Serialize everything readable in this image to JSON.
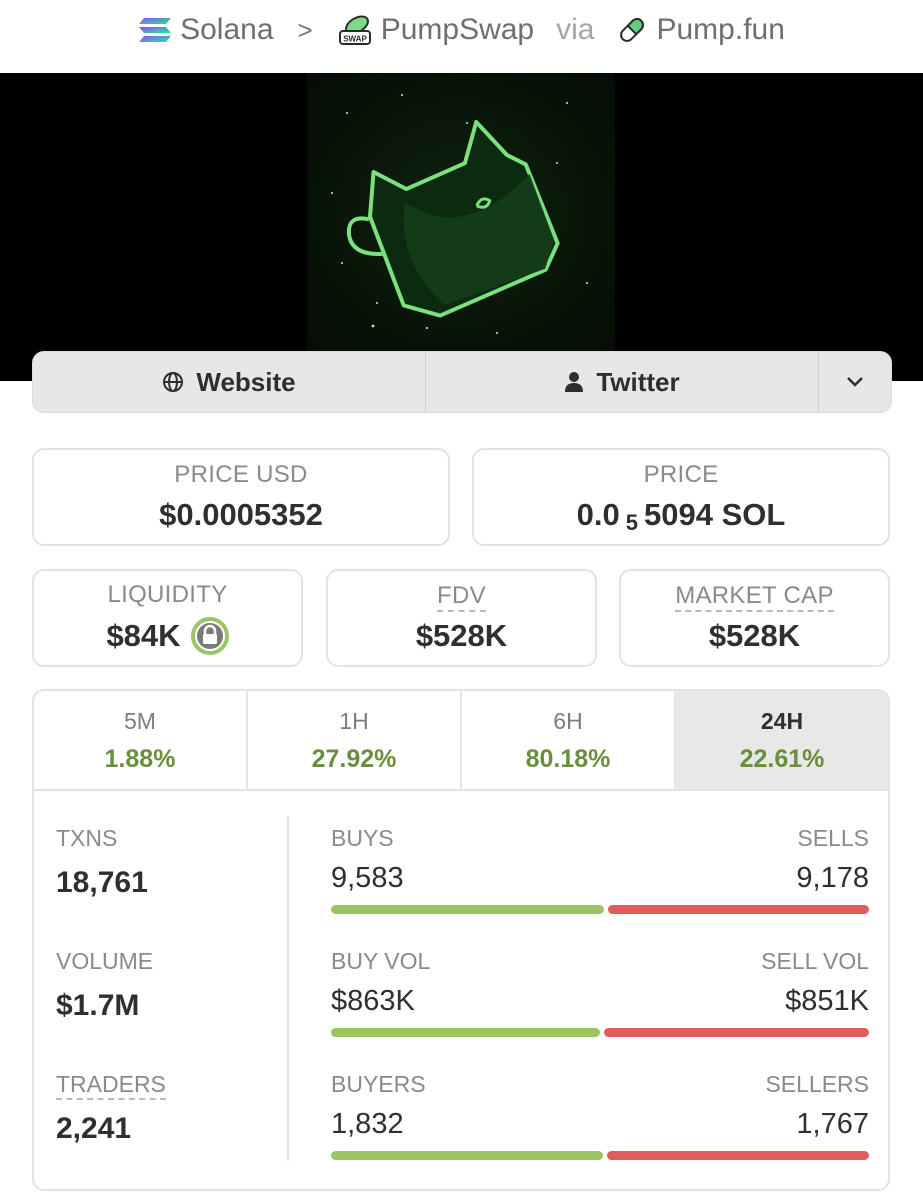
{
  "breadcrumb": {
    "chain": "Solana",
    "separator": ">",
    "dex": "PumpSwap",
    "dex_badge": "SWAP",
    "via": "via",
    "launchpad": "Pump.fun"
  },
  "links": {
    "website": "Website",
    "twitter": "Twitter"
  },
  "price_usd": {
    "label": "PRICE USD",
    "value": "$0.0005352"
  },
  "price_native": {
    "label": "PRICE",
    "prefix": "0.0",
    "subscript_zeros": "5",
    "digits": "5094 SOL"
  },
  "liquidity": {
    "label": "LIQUIDITY",
    "value": "$84K"
  },
  "fdv": {
    "label": "FDV",
    "value": "$528K"
  },
  "market_cap": {
    "label": "MARKET CAP",
    "value": "$528K"
  },
  "periods": [
    {
      "label": "5M",
      "change": "1.88%"
    },
    {
      "label": "1H",
      "change": "27.92%"
    },
    {
      "label": "6H",
      "change": "80.18%"
    },
    {
      "label": "24H",
      "change": "22.61%",
      "active": true
    }
  ],
  "stats": {
    "txns": {
      "label": "TXNS",
      "value": "18,761"
    },
    "volume": {
      "label": "VOLUME",
      "value": "$1.7M"
    },
    "traders": {
      "label": "TRADERS",
      "value": "2,241"
    },
    "buys": {
      "label": "BUYS",
      "value": "9,583"
    },
    "sells": {
      "label": "SELLS",
      "value": "9,178"
    },
    "buy_vol": {
      "label": "BUY VOL",
      "value": "$863K"
    },
    "sell_vol": {
      "label": "SELL VOL",
      "value": "$851K"
    },
    "buyers": {
      "label": "BUYERS",
      "value": "1,832"
    },
    "sellers": {
      "label": "SELLERS",
      "value": "1,767"
    }
  },
  "ratios": {
    "txns_buy_fraction": 0.511,
    "volume_buy_fraction": 0.504,
    "traders_buy_fraction": 0.509
  },
  "colors": {
    "positive": "#6a8f3b",
    "buy_bar": "#9bc564",
    "sell_bar": "#e15d5b",
    "art_glow": "#7be07e"
  },
  "icons": {
    "chain": "solana-icon",
    "dex": "pumpswap-icon",
    "launchpad": "pill-icon",
    "website": "globe-icon",
    "twitter": "person-icon",
    "more": "chevron-down-icon",
    "lock": "lock-icon"
  }
}
